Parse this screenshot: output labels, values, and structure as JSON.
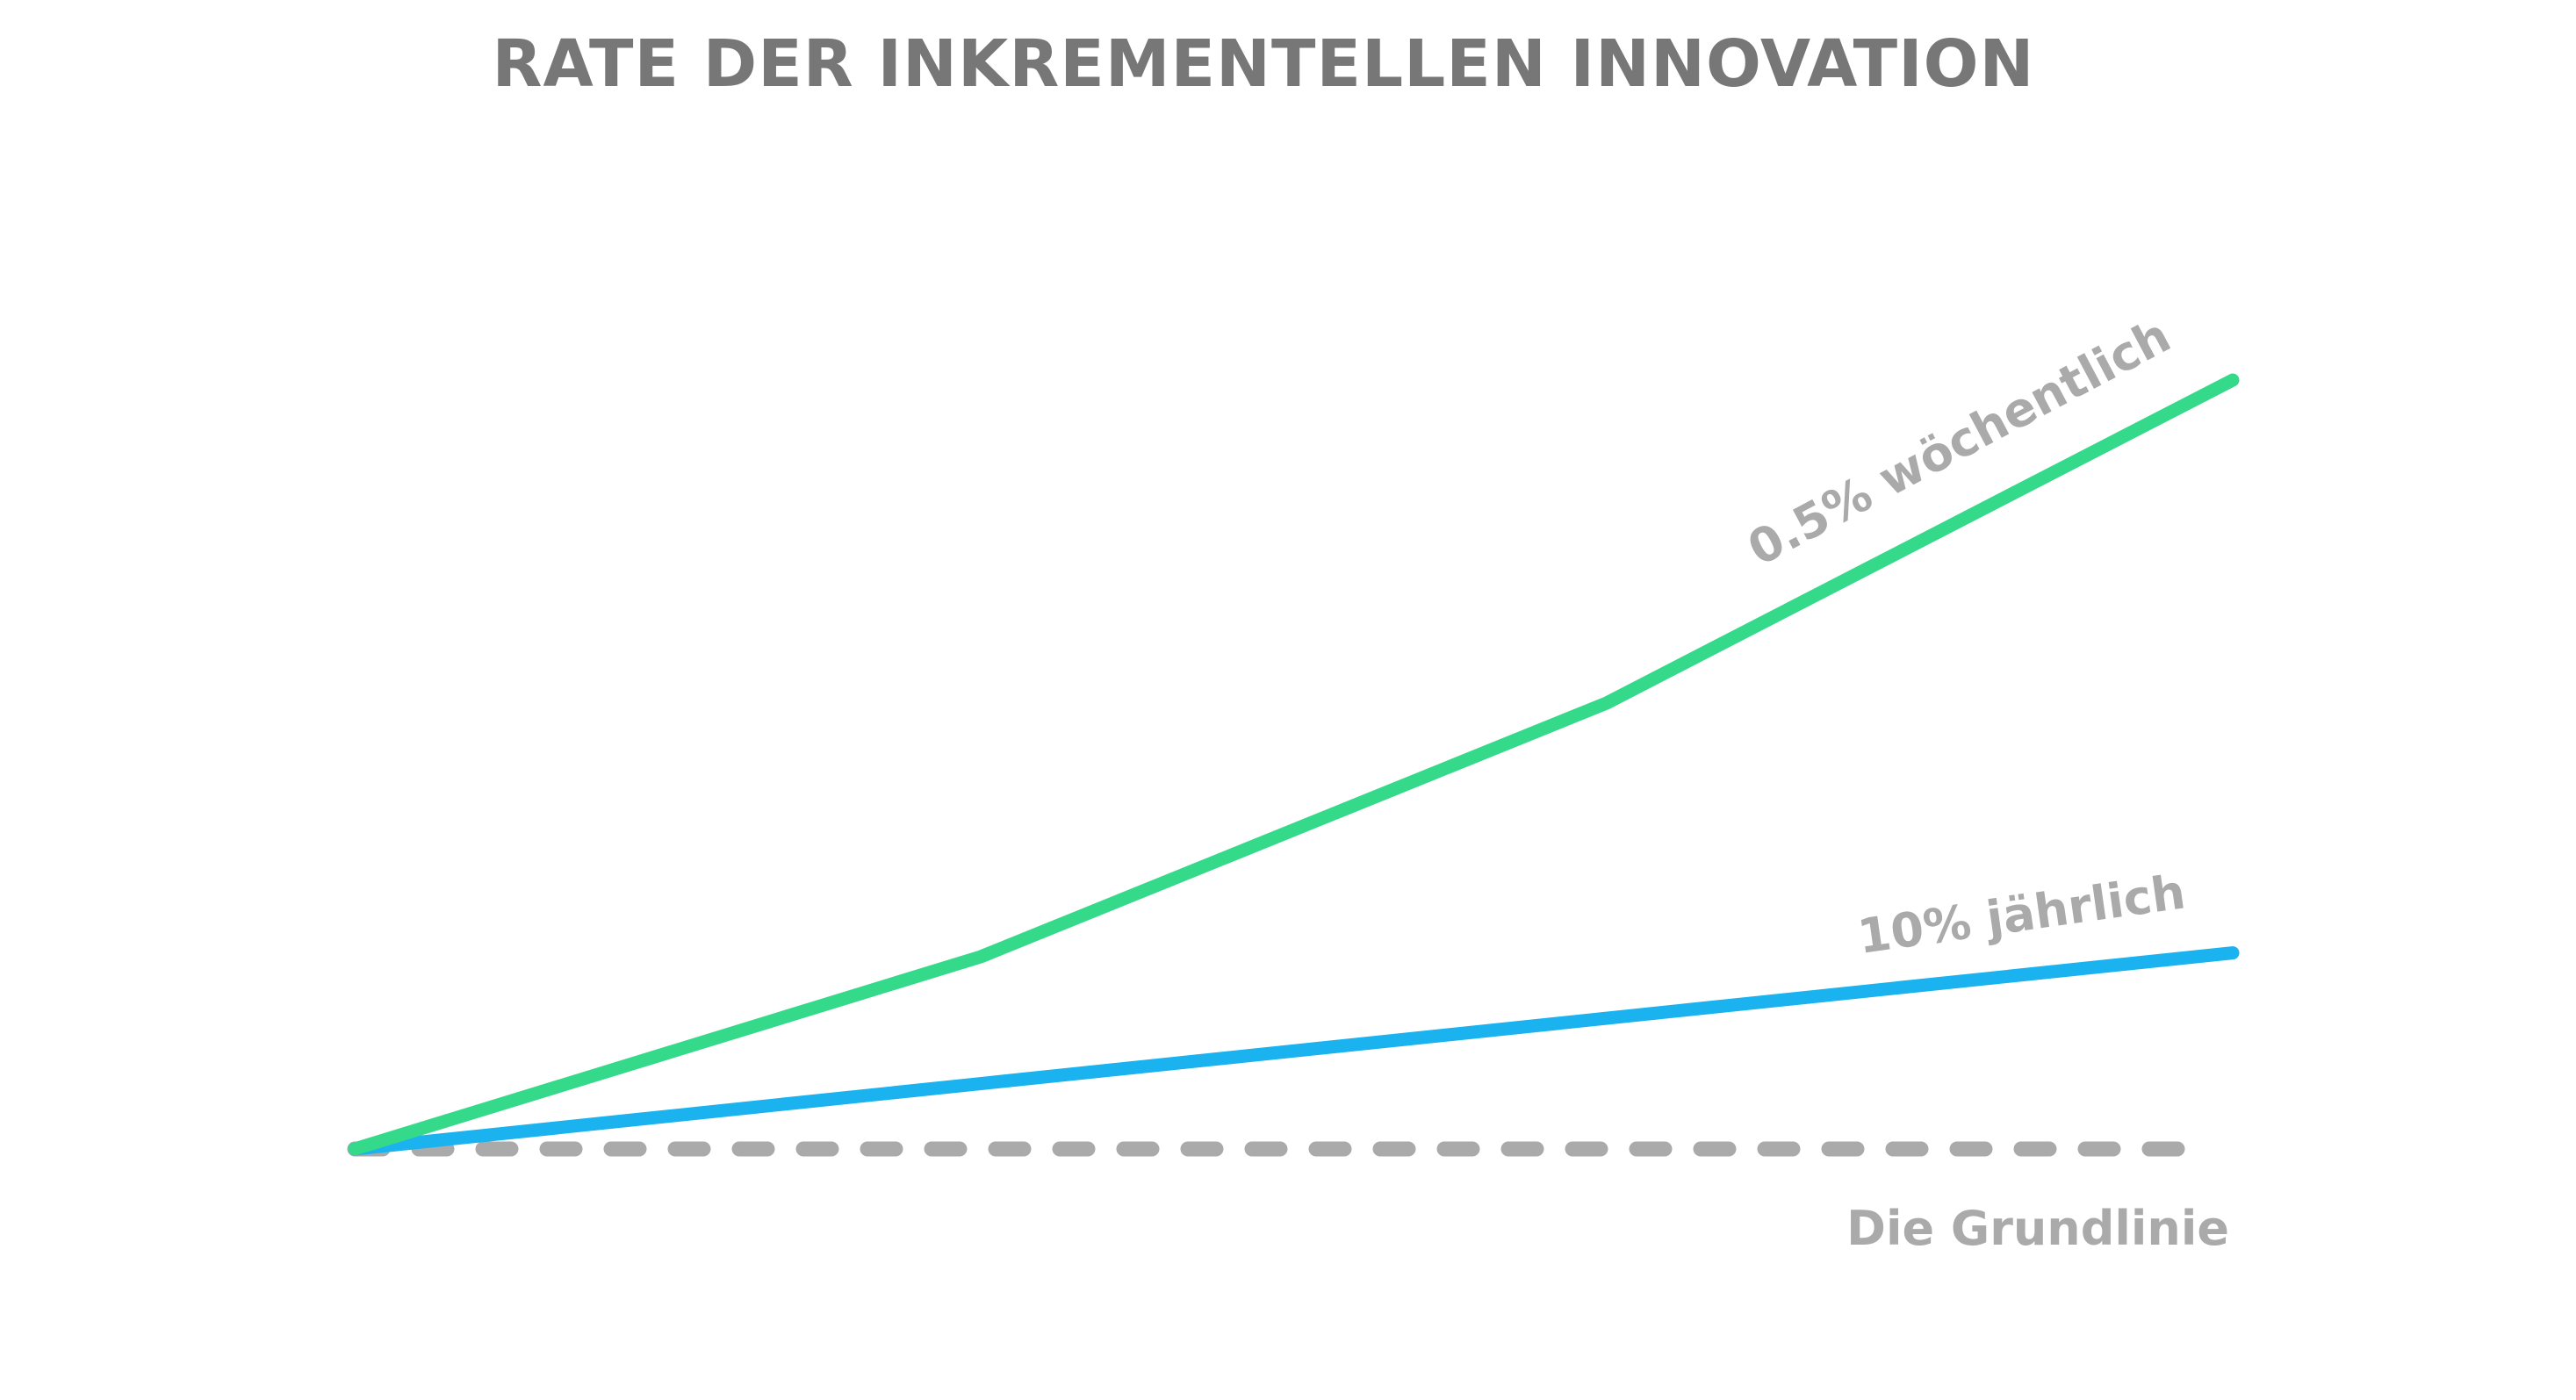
{
  "chart_data": {
    "type": "line",
    "title": "RATE DER INKREMENTELLEN INNOVATION",
    "xlabel": "",
    "ylabel": "",
    "x": [
      0,
      1,
      2,
      3
    ],
    "ylim": [
      0,
      100
    ],
    "grid": false,
    "legend": "none",
    "series": [
      {
        "name": "0.5% wöchentlich",
        "values": [
          0,
          25,
          58,
          100
        ],
        "color": "#34d98a",
        "style": "solid"
      },
      {
        "name": "10% jährlich",
        "values": [
          0,
          8.5,
          17,
          25.5
        ],
        "color": "#1ab2ef",
        "style": "solid"
      },
      {
        "name": "Die Grundlinie",
        "values": [
          0,
          0,
          0,
          0
        ],
        "color": "#aaaaaa",
        "style": "dashed"
      }
    ]
  }
}
